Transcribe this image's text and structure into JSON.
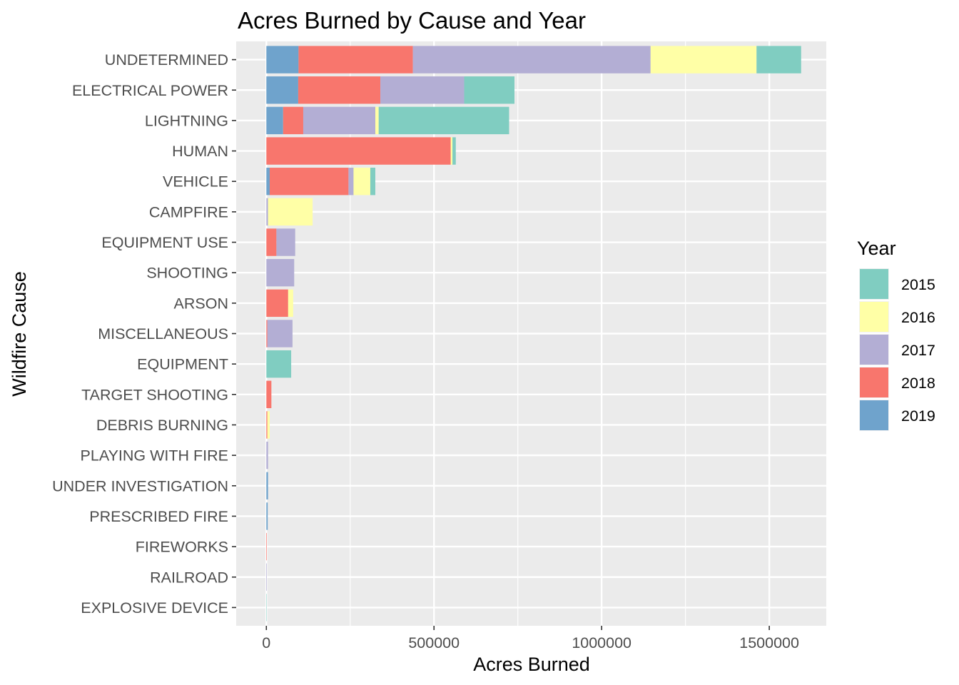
{
  "chart_data": {
    "type": "bar",
    "orientation": "horizontal",
    "stacked": true,
    "title": "Acres Burned by Cause and Year",
    "xlabel": "Acres Burned",
    "ylabel": "Wildfire Cause",
    "xlim": [
      -90000,
      1670000
    ],
    "xticks": [
      0,
      500000,
      1000000,
      1500000
    ],
    "xtick_labels": [
      "0",
      "500000",
      "1000000",
      "1500000"
    ],
    "grid": true,
    "legend": {
      "title": "Year",
      "position": "right"
    },
    "categories": [
      "UNDETERMINED",
      "ELECTRICAL POWER",
      "LIGHTNING",
      "HUMAN",
      "VEHICLE",
      "CAMPFIRE",
      "EQUIPMENT USE",
      "SHOOTING",
      "ARSON",
      "MISCELLANEOUS",
      "EQUIPMENT",
      "TARGET SHOOTING",
      "DEBRIS BURNING",
      "PLAYING WITH FIRE",
      "UNDER INVESTIGATION",
      "PRESCRIBED FIRE",
      "FIREWORKS",
      "RAILROAD",
      "EXPLOSIVE DEVICE"
    ],
    "series": [
      {
        "name": "2015",
        "color": "#80CDC1",
        "values": [
          133000,
          150000,
          389000,
          10000,
          15000,
          0,
          0,
          0,
          0,
          0,
          74000,
          0,
          0,
          0,
          0,
          0,
          0,
          0,
          500
        ]
      },
      {
        "name": "2016",
        "color": "#FFFFA6",
        "values": [
          316000,
          0,
          10000,
          5000,
          50000,
          133000,
          0,
          0,
          15000,
          0,
          0,
          0,
          7000,
          0,
          0,
          0,
          0,
          0,
          0
        ]
      },
      {
        "name": "2017",
        "color": "#B3AED4",
        "values": [
          709000,
          250000,
          215000,
          0,
          15000,
          5000,
          56000,
          83000,
          0,
          75000,
          0,
          0,
          0,
          5000,
          0,
          0,
          0,
          1500,
          0
        ]
      },
      {
        "name": "2018",
        "color": "#F8766D",
        "values": [
          341000,
          245000,
          60000,
          550000,
          235000,
          0,
          30000,
          0,
          65000,
          3000,
          0,
          15000,
          3000,
          0,
          0,
          0,
          1500,
          0,
          0
        ]
      },
      {
        "name": "2019",
        "color": "#6FA3CC",
        "values": [
          96000,
          95000,
          50000,
          0,
          10000,
          0,
          0,
          0,
          0,
          0,
          0,
          0,
          0,
          0,
          5000,
          4000,
          0,
          0,
          0
        ]
      }
    ],
    "stack_order": [
      "2019",
      "2018",
      "2017",
      "2016",
      "2015"
    ]
  }
}
